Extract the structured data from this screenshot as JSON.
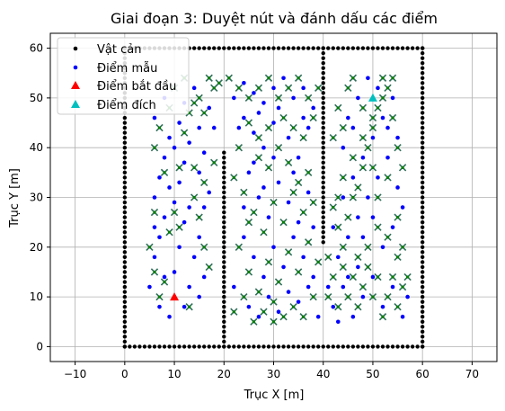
{
  "chart_data": {
    "type": "scatter",
    "title": "Giai đoạn 3: Duyệt nút và đánh dấu các điểm",
    "xlabel": "Trục X [m]",
    "ylabel": "Trục Y [m]",
    "xlim": [
      -15,
      75
    ],
    "ylim": [
      -3,
      63
    ],
    "xticks": [
      -10,
      0,
      10,
      20,
      30,
      40,
      50,
      60,
      70
    ],
    "yticks": [
      0,
      10,
      20,
      30,
      40,
      50,
      60
    ],
    "grid": true,
    "legend_position": "top-left",
    "colors": {
      "obstacle": "#000000",
      "sample": "#0000ff",
      "start": "#ff0000",
      "goal": "#00bfbf",
      "visited_marker": "#2f6f5a",
      "visited_dot": "#008000",
      "grid": "#b0b0b0"
    },
    "legend": [
      {
        "label": "Vật cản",
        "marker": "dot",
        "color": "#000000"
      },
      {
        "label": "Điểm mẫu",
        "marker": "dot",
        "color": "#0000ff"
      },
      {
        "label": "Điểm bắt đầu",
        "marker": "triangle",
        "color": "#ff0000"
      },
      {
        "label": "Điểm đích",
        "marker": "triangle",
        "color": "#00bfbf"
      }
    ],
    "obstacle_segments": [
      {
        "x": [
          0,
          60
        ],
        "y": [
          0,
          0
        ]
      },
      {
        "x": [
          0,
          0
        ],
        "y": [
          0,
          60
        ]
      },
      {
        "x": [
          60,
          60
        ],
        "y": [
          0,
          60
        ]
      },
      {
        "x": [
          0,
          60
        ],
        "y": [
          60,
          60
        ]
      },
      {
        "x": [
          20,
          20
        ],
        "y": [
          0,
          39
        ]
      },
      {
        "x": [
          40,
          40
        ],
        "y": [
          21,
          60
        ]
      }
    ],
    "start": {
      "x": 10,
      "y": 10
    },
    "goal": {
      "x": 50,
      "y": 50
    },
    "sample_points": [
      [
        5,
        12
      ],
      [
        6,
        18
      ],
      [
        7,
        22
      ],
      [
        8,
        26
      ],
      [
        6,
        30
      ],
      [
        7,
        34
      ],
      [
        8,
        38
      ],
      [
        9,
        42
      ],
      [
        6,
        46
      ],
      [
        8,
        50
      ],
      [
        10,
        15
      ],
      [
        11,
        20
      ],
      [
        12,
        25
      ],
      [
        10,
        29
      ],
      [
        11,
        33
      ],
      [
        12,
        37
      ],
      [
        13,
        41
      ],
      [
        11,
        45
      ],
      [
        12,
        49
      ],
      [
        14,
        52
      ],
      [
        15,
        10
      ],
      [
        16,
        14
      ],
      [
        14,
        18
      ],
      [
        15,
        22
      ],
      [
        16,
        28
      ],
      [
        17,
        31
      ],
      [
        15,
        35
      ],
      [
        16,
        39
      ],
      [
        18,
        44
      ],
      [
        17,
        48
      ],
      [
        7,
        8
      ],
      [
        9,
        6
      ],
      [
        12,
        8
      ],
      [
        13,
        12
      ],
      [
        8,
        14
      ],
      [
        6,
        24
      ],
      [
        9,
        32
      ],
      [
        13,
        28
      ],
      [
        10,
        40
      ],
      [
        15,
        44
      ],
      [
        22,
        50
      ],
      [
        24,
        53
      ],
      [
        26,
        51
      ],
      [
        28,
        49
      ],
      [
        30,
        52
      ],
      [
        32,
        54
      ],
      [
        34,
        50
      ],
      [
        36,
        52
      ],
      [
        38,
        48
      ],
      [
        37,
        44
      ],
      [
        24,
        46
      ],
      [
        26,
        43
      ],
      [
        28,
        40
      ],
      [
        30,
        45
      ],
      [
        33,
        42
      ],
      [
        35,
        38
      ],
      [
        36,
        46
      ],
      [
        31,
        48
      ],
      [
        27,
        47
      ],
      [
        23,
        44
      ],
      [
        25,
        35
      ],
      [
        27,
        30
      ],
      [
        29,
        26
      ],
      [
        31,
        33
      ],
      [
        33,
        29
      ],
      [
        35,
        25
      ],
      [
        37,
        31
      ],
      [
        34,
        35
      ],
      [
        30,
        38
      ],
      [
        26,
        37
      ],
      [
        24,
        22
      ],
      [
        26,
        18
      ],
      [
        28,
        14
      ],
      [
        30,
        20
      ],
      [
        32,
        16
      ],
      [
        34,
        22
      ],
      [
        36,
        18
      ],
      [
        38,
        14
      ],
      [
        29,
        10
      ],
      [
        33,
        11
      ],
      [
        22,
        12
      ],
      [
        25,
        8
      ],
      [
        27,
        6
      ],
      [
        31,
        7
      ],
      [
        35,
        9
      ],
      [
        37,
        12
      ],
      [
        39,
        6
      ],
      [
        24,
        28
      ],
      [
        28,
        32
      ],
      [
        38,
        24
      ],
      [
        42,
        8
      ],
      [
        44,
        12
      ],
      [
        46,
        6
      ],
      [
        48,
        10
      ],
      [
        50,
        14
      ],
      [
        52,
        8
      ],
      [
        54,
        12
      ],
      [
        56,
        6
      ],
      [
        47,
        16
      ],
      [
        43,
        18
      ],
      [
        45,
        22
      ],
      [
        47,
        26
      ],
      [
        49,
        30
      ],
      [
        51,
        34
      ],
      [
        53,
        38
      ],
      [
        55,
        42
      ],
      [
        44,
        30
      ],
      [
        46,
        34
      ],
      [
        48,
        38
      ],
      [
        50,
        42
      ],
      [
        52,
        46
      ],
      [
        54,
        50
      ],
      [
        45,
        46
      ],
      [
        47,
        50
      ],
      [
        49,
        54
      ],
      [
        51,
        52
      ],
      [
        53,
        44
      ],
      [
        44,
        40
      ],
      [
        46,
        44
      ],
      [
        55,
        32
      ],
      [
        48,
        22
      ],
      [
        50,
        26
      ],
      [
        52,
        20
      ],
      [
        54,
        24
      ],
      [
        56,
        28
      ],
      [
        45,
        14
      ],
      [
        41,
        12
      ],
      [
        43,
        5
      ],
      [
        57,
        10
      ],
      [
        42,
        24
      ]
    ],
    "visited_points": [
      [
        5,
        20
      ],
      [
        6,
        15
      ],
      [
        7,
        10
      ],
      [
        8,
        13
      ],
      [
        9,
        23
      ],
      [
        10,
        27
      ],
      [
        11,
        36
      ],
      [
        12,
        43
      ],
      [
        13,
        47
      ],
      [
        15,
        50
      ],
      [
        6,
        40
      ],
      [
        7,
        44
      ],
      [
        9,
        48
      ],
      [
        10,
        52
      ],
      [
        12,
        54
      ],
      [
        14,
        30
      ],
      [
        15,
        26
      ],
      [
        16,
        20
      ],
      [
        17,
        16
      ],
      [
        13,
        8
      ],
      [
        6,
        27
      ],
      [
        8,
        35
      ],
      [
        11,
        24
      ],
      [
        14,
        36
      ],
      [
        16,
        33
      ],
      [
        18,
        37
      ],
      [
        18,
        52
      ],
      [
        17,
        54
      ],
      [
        16,
        47
      ],
      [
        14,
        49
      ],
      [
        19,
        53
      ],
      [
        21,
        54
      ],
      [
        23,
        52
      ],
      [
        25,
        50
      ],
      [
        27,
        52
      ],
      [
        29,
        54
      ],
      [
        31,
        50
      ],
      [
        33,
        52
      ],
      [
        35,
        54
      ],
      [
        37,
        50
      ],
      [
        39,
        52
      ],
      [
        38,
        46
      ],
      [
        36,
        42
      ],
      [
        34,
        44
      ],
      [
        32,
        46
      ],
      [
        29,
        44
      ],
      [
        27,
        42
      ],
      [
        25,
        45
      ],
      [
        23,
        40
      ],
      [
        22,
        34
      ],
      [
        24,
        31
      ],
      [
        26,
        27
      ],
      [
        28,
        23
      ],
      [
        30,
        29
      ],
      [
        32,
        25
      ],
      [
        34,
        31
      ],
      [
        36,
        27
      ],
      [
        38,
        29
      ],
      [
        37,
        35
      ],
      [
        35,
        33
      ],
      [
        33,
        37
      ],
      [
        31,
        40
      ],
      [
        29,
        36
      ],
      [
        27,
        38
      ],
      [
        25,
        25
      ],
      [
        23,
        20
      ],
      [
        25,
        15
      ],
      [
        27,
        11
      ],
      [
        29,
        17
      ],
      [
        31,
        13
      ],
      [
        33,
        19
      ],
      [
        35,
        15
      ],
      [
        37,
        21
      ],
      [
        39,
        17
      ],
      [
        38,
        10
      ],
      [
        36,
        6
      ],
      [
        34,
        8
      ],
      [
        32,
        6
      ],
      [
        30,
        9
      ],
      [
        28,
        7
      ],
      [
        26,
        5
      ],
      [
        24,
        10
      ],
      [
        22,
        7
      ],
      [
        30,
        5
      ],
      [
        41,
        10
      ],
      [
        42,
        14
      ],
      [
        43,
        8
      ],
      [
        44,
        16
      ],
      [
        45,
        10
      ],
      [
        46,
        14
      ],
      [
        47,
        8
      ],
      [
        48,
        12
      ],
      [
        49,
        16
      ],
      [
        50,
        10
      ],
      [
        51,
        14
      ],
      [
        52,
        6
      ],
      [
        53,
        10
      ],
      [
        54,
        14
      ],
      [
        55,
        8
      ],
      [
        56,
        12
      ],
      [
        44,
        20
      ],
      [
        45,
        26
      ],
      [
        46,
        30
      ],
      [
        47,
        32
      ],
      [
        48,
        36
      ],
      [
        49,
        40
      ],
      [
        50,
        44
      ],
      [
        51,
        48
      ],
      [
        52,
        54
      ],
      [
        53,
        52
      ],
      [
        54,
        46
      ],
      [
        55,
        40
      ],
      [
        56,
        36
      ],
      [
        55,
        26
      ],
      [
        53,
        22
      ],
      [
        51,
        24
      ],
      [
        49,
        20
      ],
      [
        47,
        18
      ],
      [
        43,
        24
      ],
      [
        42,
        28
      ],
      [
        44,
        34
      ],
      [
        46,
        38
      ],
      [
        48,
        42
      ],
      [
        50,
        46
      ],
      [
        52,
        50
      ],
      [
        54,
        54
      ],
      [
        45,
        52
      ],
      [
        43,
        48
      ],
      [
        42,
        42
      ],
      [
        44,
        44
      ],
      [
        51,
        30
      ],
      [
        53,
        34
      ],
      [
        55,
        18
      ],
      [
        56,
        20
      ],
      [
        57,
        14
      ],
      [
        41,
        18
      ],
      [
        43,
        30
      ],
      [
        50,
        36
      ],
      [
        48,
        48
      ],
      [
        46,
        54
      ]
    ]
  }
}
